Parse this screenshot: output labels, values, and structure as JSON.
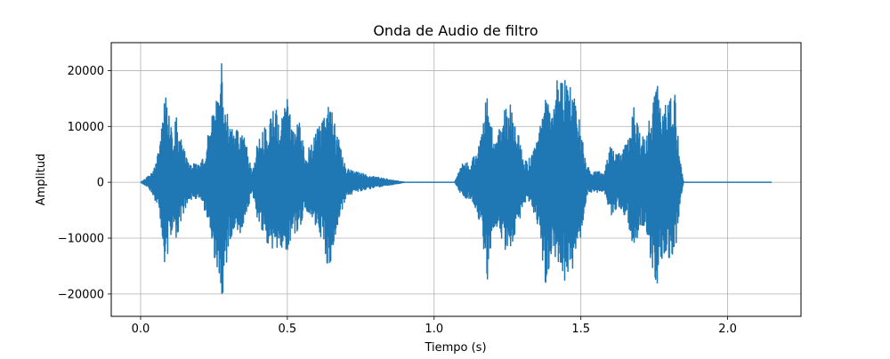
{
  "chart_data": {
    "type": "line",
    "title": "Onda de Audio de  filtro",
    "xlabel": "Tiempo (s)",
    "ylabel": "Amplitud",
    "xlim": [
      -0.1,
      2.25
    ],
    "ylim": [
      -24000,
      25000
    ],
    "grid": true,
    "line_color": "#1f77b4",
    "x_ticks": [
      {
        "value": 0.0,
        "label": "0.0"
      },
      {
        "value": 0.5,
        "label": "0.5"
      },
      {
        "value": 1.0,
        "label": "1.0"
      },
      {
        "value": 1.5,
        "label": "1.5"
      },
      {
        "value": 2.0,
        "label": "2.0"
      }
    ],
    "y_ticks": [
      {
        "value": -20000,
        "label": "−20000"
      },
      {
        "value": -10000,
        "label": "−10000"
      },
      {
        "value": 0,
        "label": "0"
      },
      {
        "value": 10000,
        "label": "10000"
      },
      {
        "value": 20000,
        "label": "20000"
      }
    ],
    "series": [
      {
        "x": [
          0.0,
          0.02,
          0.04,
          0.06,
          0.07,
          0.08,
          0.085,
          0.09,
          0.095,
          0.1,
          0.11,
          0.12,
          0.14,
          0.16,
          0.18,
          0.2,
          0.22,
          0.24,
          0.26,
          0.27,
          0.28,
          0.285,
          0.29,
          0.3,
          0.32,
          0.34,
          0.36,
          0.38,
          0.4,
          0.42,
          0.44,
          0.46,
          0.48,
          0.5,
          0.52,
          0.54,
          0.56,
          0.58,
          0.6,
          0.62,
          0.64,
          0.66,
          0.7,
          0.74,
          0.78,
          0.9,
          1.0,
          1.07,
          1.1,
          1.12,
          1.14,
          1.16,
          1.18,
          1.2,
          1.22,
          1.24,
          1.26,
          1.28,
          1.3,
          1.32,
          1.34,
          1.36,
          1.38,
          1.4,
          1.42,
          1.44,
          1.46,
          1.48,
          1.5,
          1.52,
          1.54,
          1.56,
          1.58,
          1.6,
          1.62,
          1.64,
          1.66,
          1.68,
          1.7,
          1.72,
          1.74,
          1.76,
          1.78,
          1.8,
          1.82,
          1.84,
          1.85,
          2.0,
          2.15
        ],
        "max": [
          0,
          800,
          2000,
          5500,
          9000,
          15000,
          19200,
          17000,
          13000,
          11000,
          9000,
          12000,
          8000,
          4000,
          3500,
          3000,
          6000,
          11000,
          18000,
          20000,
          23000,
          18500,
          17000,
          12000,
          9000,
          10000,
          7000,
          1500,
          8000,
          10000,
          12000,
          14000,
          12000,
          15000,
          9000,
          11000,
          5000,
          7000,
          10000,
          11000,
          16000,
          11000,
          2500,
          1800,
          1200,
          0,
          0,
          0,
          4000,
          4000,
          5000,
          8000,
          16500,
          9000,
          9500,
          13000,
          14500,
          11000,
          5000,
          4000,
          6000,
          10000,
          17000,
          13500,
          18500,
          19000,
          17500,
          15000,
          10000,
          3000,
          1800,
          2000,
          1700,
          7000,
          5000,
          6000,
          7500,
          13500,
          9000,
          8000,
          14000,
          18000,
          13500,
          16000,
          16000,
          3500,
          0,
          0,
          0
        ],
        "min": [
          0,
          -800,
          -2000,
          -5000,
          -9000,
          -15000,
          -20600,
          -15000,
          -12000,
          -10000,
          -8500,
          -10000,
          -7500,
          -3500,
          -3000,
          -3000,
          -5500,
          -10000,
          -16000,
          -19000,
          -21400,
          -17500,
          -16000,
          -12000,
          -9000,
          -9500,
          -6500,
          -1500,
          -7500,
          -9500,
          -12000,
          -14000,
          -11500,
          -14000,
          -8500,
          -10500,
          -4500,
          -6500,
          -9500,
          -10500,
          -16400,
          -10500,
          -2500,
          -1800,
          -1200,
          0,
          0,
          0,
          -3000,
          -3000,
          -4500,
          -8000,
          -18600,
          -8500,
          -9000,
          -12500,
          -13000,
          -10500,
          -4500,
          -3500,
          -5500,
          -9500,
          -18800,
          -13000,
          -15000,
          -18200,
          -17000,
          -14500,
          -9500,
          -2500,
          -1800,
          -1800,
          -1600,
          -6500,
          -5000,
          -5500,
          -7000,
          -12500,
          -8500,
          -7500,
          -14500,
          -18800,
          -13000,
          -14000,
          -13500,
          -3000,
          0,
          0,
          0
        ]
      }
    ]
  }
}
